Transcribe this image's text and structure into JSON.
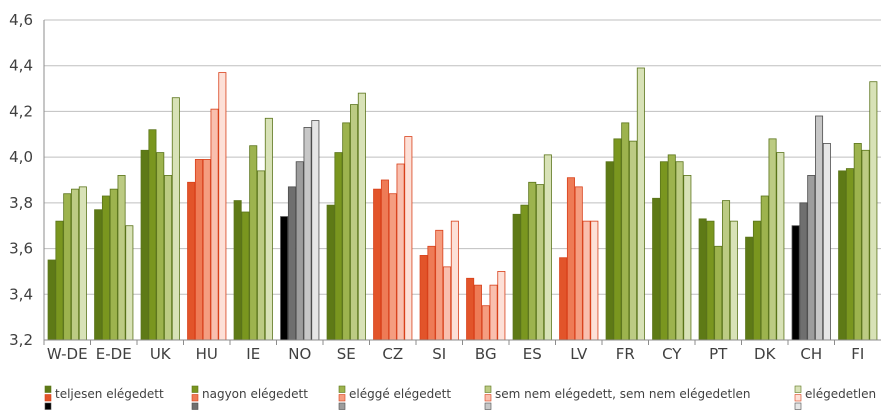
{
  "chart_data": {
    "type": "bar",
    "title": "",
    "xlabel": "",
    "ylabel": "",
    "ylim": [
      3.2,
      4.6
    ],
    "yticks": [
      "3,2",
      "3,4",
      "3,6",
      "3,8",
      "4,0",
      "4,2",
      "4,4",
      "4,6"
    ],
    "grid": "horizontal",
    "legend_position": "bottom",
    "categories": [
      "W-DE",
      "E-DE",
      "UK",
      "HU",
      "IE",
      "NO",
      "SE",
      "CZ",
      "SI",
      "BG",
      "ES",
      "LV",
      "FR",
      "CY",
      "PT",
      "DK",
      "CH",
      "FI"
    ],
    "series_labels": [
      "teljesen elégedett",
      "nagyon elégedett",
      "eléggé elégedett",
      "sem nem elégedett, sem nem elégedetlen",
      "elégedetlen"
    ],
    "values": [
      [
        3.55,
        3.72,
        3.84,
        3.86,
        3.87
      ],
      [
        3.77,
        3.83,
        3.86,
        3.92,
        3.7
      ],
      [
        4.03,
        4.12,
        4.02,
        3.92,
        4.26
      ],
      [
        3.89,
        3.99,
        3.99,
        4.21,
        4.37
      ],
      [
        3.81,
        3.76,
        4.05,
        3.94,
        4.17
      ],
      [
        3.74,
        3.87,
        3.98,
        4.13,
        4.16
      ],
      [
        3.79,
        4.02,
        4.15,
        4.23,
        4.28
      ],
      [
        3.86,
        3.9,
        3.84,
        3.97,
        4.09
      ],
      [
        3.57,
        3.61,
        3.68,
        3.52,
        3.72
      ],
      [
        3.47,
        3.44,
        3.35,
        3.44,
        3.5
      ],
      [
        3.75,
        3.79,
        3.89,
        3.88,
        4.01
      ],
      [
        3.56,
        3.91,
        3.87,
        3.72,
        3.72
      ],
      [
        3.98,
        4.08,
        4.15,
        4.07,
        4.39
      ],
      [
        3.82,
        3.98,
        4.01,
        3.98,
        3.92
      ],
      [
        3.73,
        3.72,
        3.61,
        3.81,
        3.72
      ],
      [
        3.65,
        3.72,
        3.83,
        4.08,
        4.02
      ],
      [
        3.7,
        3.8,
        3.92,
        4.18,
        4.06
      ],
      [
        3.94,
        3.95,
        4.06,
        4.03,
        4.33
      ]
    ],
    "palettes": {
      "green": [
        "#5e7a16",
        "#7a961f",
        "#9db34e",
        "#bccb83",
        "#d8e2b7"
      ],
      "orange": [
        "#e2542a",
        "#ee7b56",
        "#f59d80",
        "#f9bfae",
        "#fde0d7"
      ],
      "gray": [
        "#000000",
        "#6f6f6f",
        "#9d9d9d",
        "#c7c7c7",
        "#e6e6e6"
      ]
    },
    "category_palette": [
      "green",
      "green",
      "green",
      "orange",
      "green",
      "gray",
      "green",
      "orange",
      "orange",
      "orange",
      "green",
      "orange",
      "green",
      "green",
      "green",
      "green",
      "gray",
      "green"
    ]
  }
}
